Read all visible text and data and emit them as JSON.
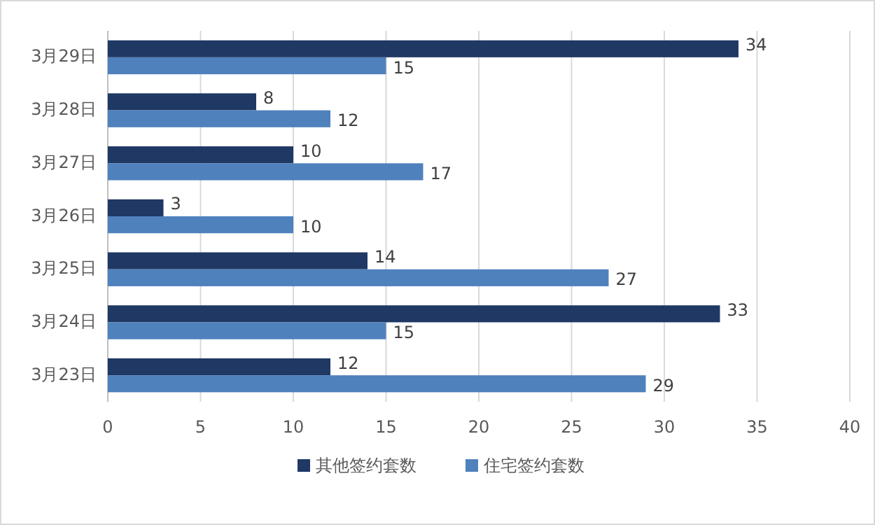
{
  "chart_data": {
    "type": "bar",
    "orientation": "horizontal",
    "categories": [
      "3月29日",
      "3月28日",
      "3月27日",
      "3月26日",
      "3月25日",
      "3月24日",
      "3月23日"
    ],
    "series": [
      {
        "name": "其他签约套数",
        "color": "#1f3864",
        "values": [
          34,
          8,
          10,
          3,
          14,
          33,
          12
        ]
      },
      {
        "name": "住宅签约套数",
        "color": "#4f81bd",
        "values": [
          15,
          12,
          17,
          10,
          27,
          15,
          29
        ]
      }
    ],
    "xlim": [
      0,
      40
    ],
    "xticks": [
      0,
      5,
      10,
      15,
      20,
      25,
      30,
      35,
      40
    ],
    "grid": "x",
    "legend": "bottom",
    "data_labels": true
  }
}
